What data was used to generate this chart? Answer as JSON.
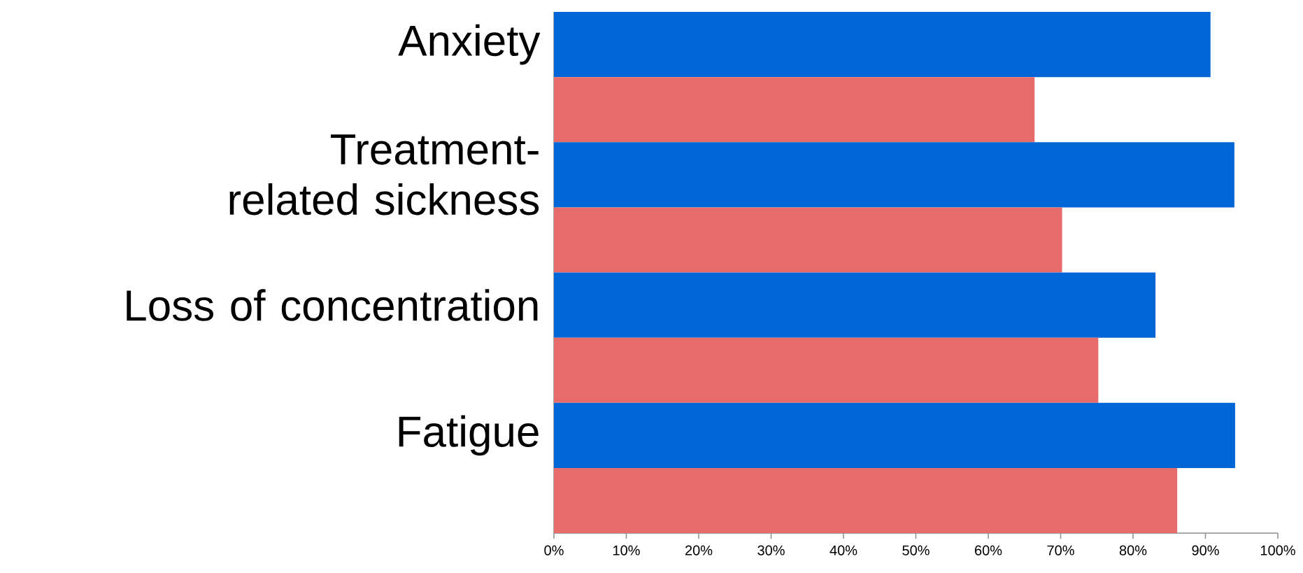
{
  "chart_data": {
    "type": "bar",
    "orientation": "horizontal",
    "categories": [
      "Anxiety",
      null,
      "Treatment-related sickness",
      null,
      "Loss of concentration",
      null,
      "Fatigue",
      null
    ],
    "values": [
      90.7,
      66.4,
      94.0,
      70.2,
      83.1,
      75.2,
      94.1,
      86.1
    ],
    "colors": [
      "#0066d6",
      "#e86b6b",
      "#0066d6",
      "#e86b6b",
      "#0066d6",
      "#e86b6b",
      "#0066d6",
      "#e86b6b"
    ],
    "xlim": [
      0,
      100
    ],
    "xticks": [
      {
        "value": 0,
        "label": "0%"
      },
      {
        "value": 10,
        "label": "10%"
      },
      {
        "value": 20,
        "label": "20%"
      },
      {
        "value": 30,
        "label": "30%"
      },
      {
        "value": 40,
        "label": "40%"
      },
      {
        "value": 50,
        "label": "50%"
      },
      {
        "value": 60,
        "label": "60%"
      },
      {
        "value": 70,
        "label": "70%"
      },
      {
        "value": 80,
        "label": "80%"
      },
      {
        "value": 90,
        "label": "90%"
      },
      {
        "value": 100,
        "label": "100%"
      }
    ]
  }
}
